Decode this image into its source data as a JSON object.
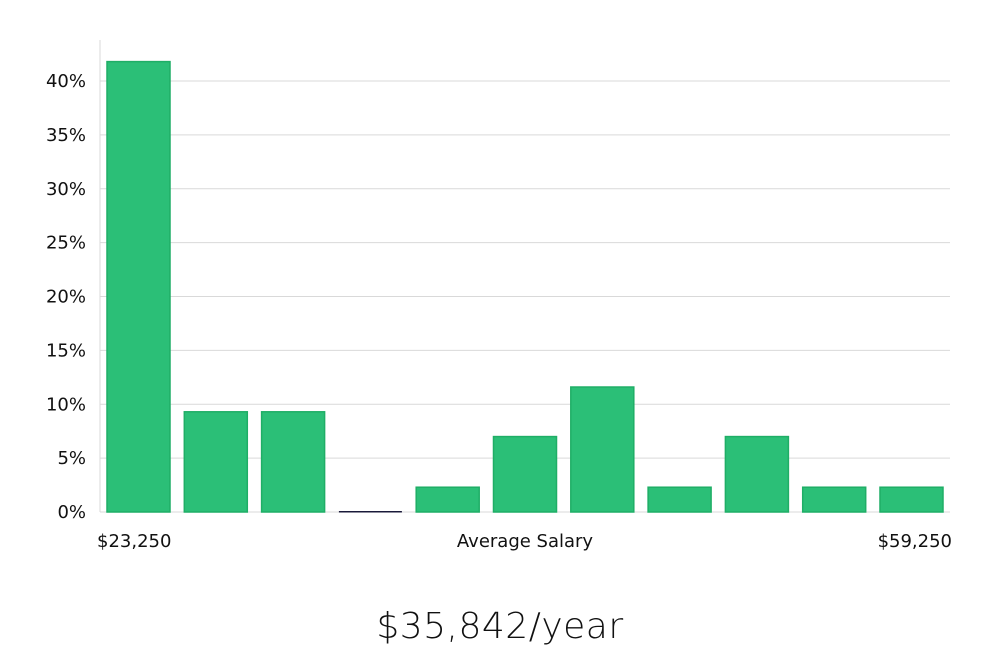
{
  "chart_data": {
    "type": "bar",
    "bins": 11,
    "values": [
      41.8,
      9.3,
      9.3,
      0,
      2.3,
      7.0,
      11.6,
      2.3,
      7.0,
      2.3,
      2.3
    ],
    "ylim": [
      0,
      44
    ],
    "yticks": [
      0,
      5,
      10,
      15,
      20,
      25,
      30,
      35,
      40
    ],
    "ytick_labels": [
      "0%",
      "5%",
      "10%",
      "15%",
      "20%",
      "25%",
      "30%",
      "35%",
      "40%"
    ],
    "xlabel": "Average Salary",
    "x_min_label": "$23,250",
    "x_max_label": "$59,250",
    "grid": true,
    "bar_color": "#2bbf77",
    "bar_edge_color": "#1fae66",
    "zero_bar_color": "#1a1a3a"
  },
  "summary": {
    "average_salary": "$35,842/year"
  }
}
